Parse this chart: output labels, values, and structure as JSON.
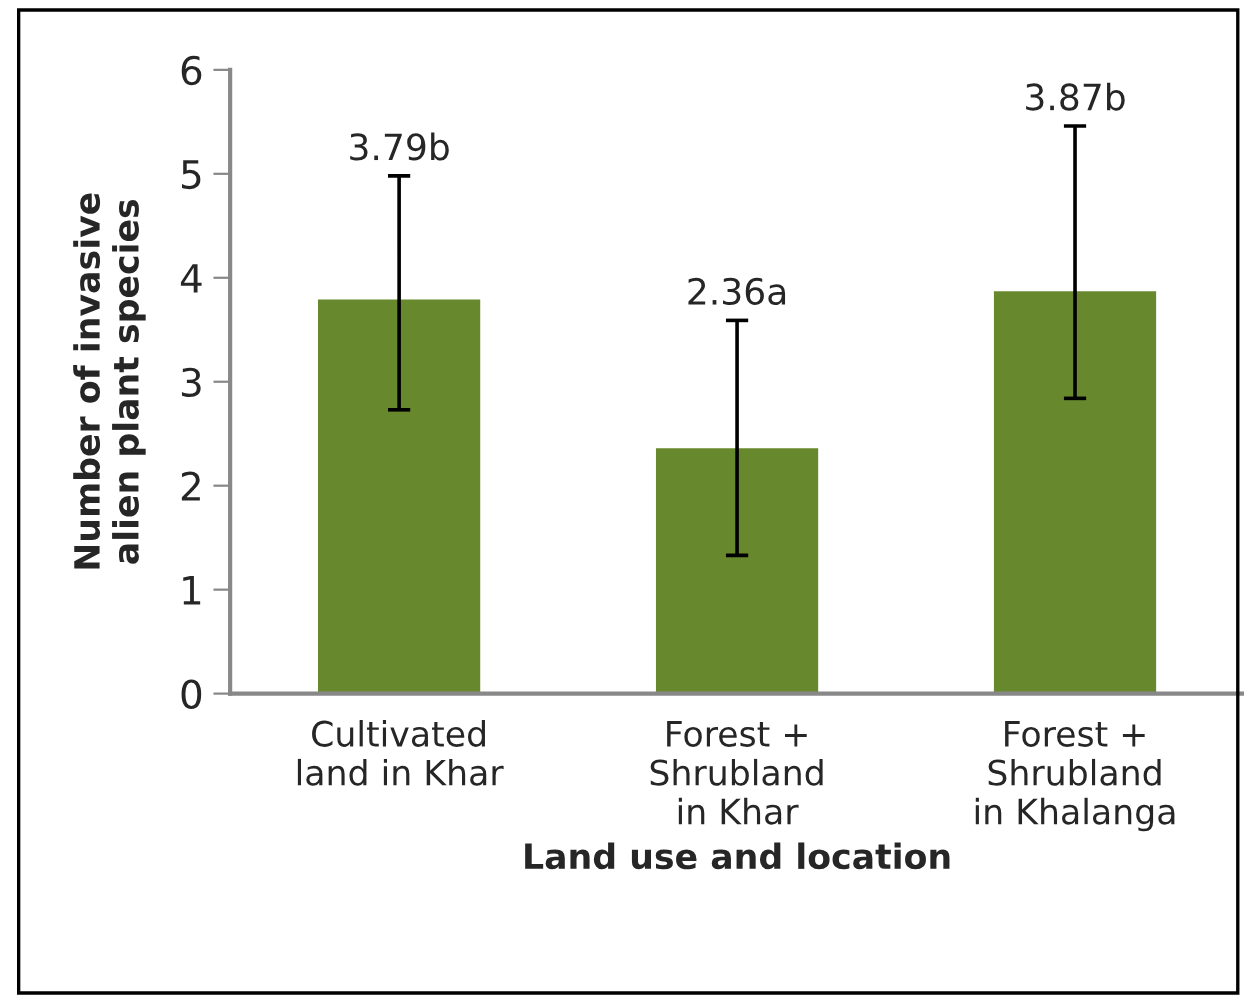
{
  "chart_data": {
    "type": "bar",
    "xlabel": "Land use and location",
    "ylabel": "Number of invasive\nalien plant species",
    "categories": [
      "Cultivated\nland in Khar",
      "Forest +\nShrubland\nin Khar",
      "Forest +\nShrubland\nin Khalanga"
    ],
    "values": [
      3.79,
      2.36,
      3.87
    ],
    "errors": [
      [
        2.73,
        4.98
      ],
      [
        1.33,
        3.59
      ],
      [
        2.84,
        5.46
      ]
    ],
    "annotations": [
      {
        "text": "3.79b",
        "x": "Cultivated\nland in Khar",
        "y": 4.98
      },
      {
        "text": "2.36a",
        "x": "Forest +\nShrubland\nin Khar",
        "y": 3.59
      },
      {
        "text": "3.87b",
        "x": "Forest +\nShrubland\nin Khalanga",
        "y": 5.46
      }
    ],
    "color": "#68882e",
    "ylim": [
      0,
      6
    ],
    "yticks": [
      0,
      1,
      2,
      3,
      4,
      5,
      6
    ],
    "grid": false
  }
}
